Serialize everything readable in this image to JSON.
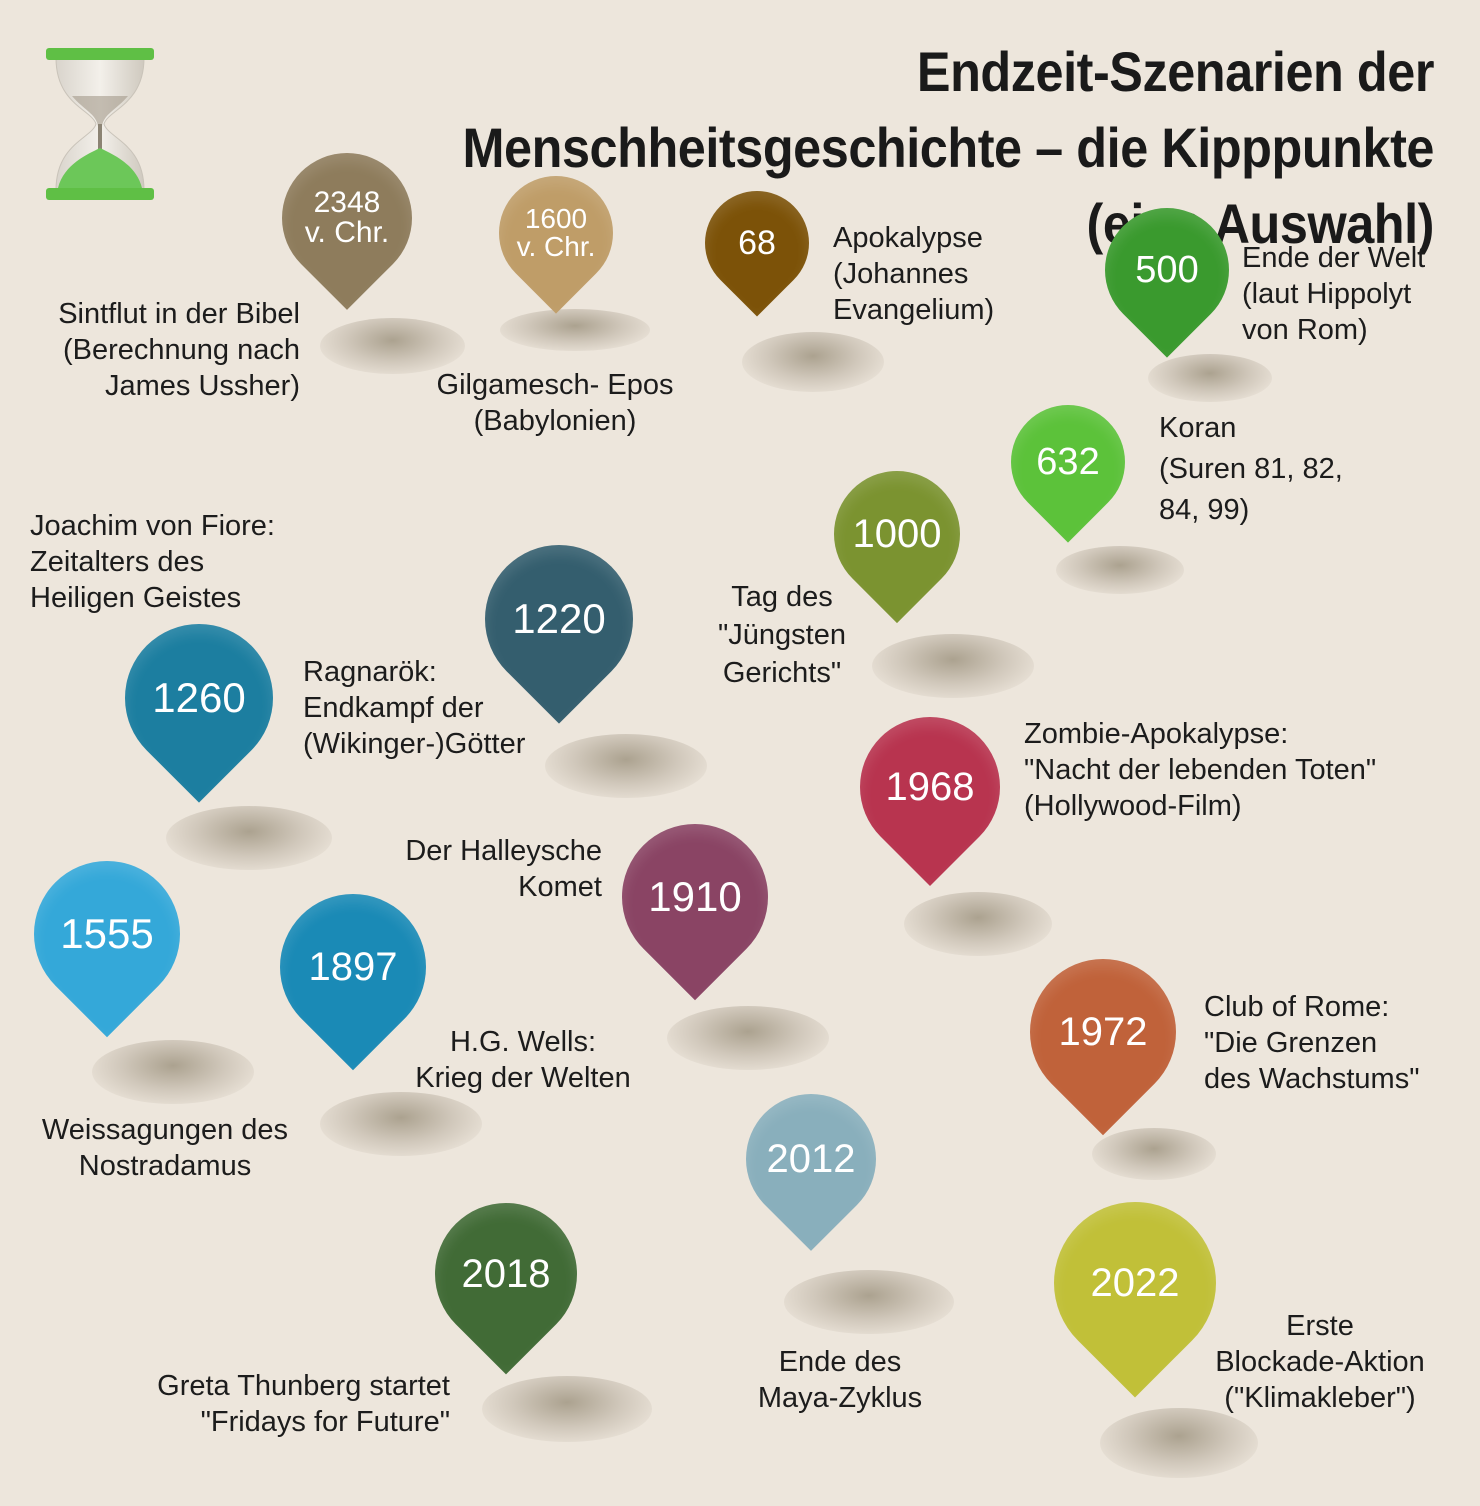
{
  "title": "Endzeit-Szenarien der Menschheitsgeschichte\n– die Kipppunkte (eine Auswahl)",
  "icon": {
    "name": "hourglass-icon",
    "frame_color": "#5fbf45",
    "sand_color": "#6cc759"
  },
  "events": [
    {
      "id": "2348",
      "year": "2348\nv. Chr.",
      "color": "#8e7c5c",
      "description": "Sintflut in der Bibel\n(Berechnung nach\nJames Ussher)"
    },
    {
      "id": "1600",
      "year": "1600\nv. Chr.",
      "color": "#bf9d68",
      "description": "Gilgamesch- Epos\n(Babylonien)"
    },
    {
      "id": "68",
      "year": "68",
      "color": "#7c5208",
      "description": "Apokalypse\n(Johannes\nEvangelium)"
    },
    {
      "id": "500",
      "year": "500",
      "color": "#3a9a2e",
      "description": "Ende der Welt\n(laut Hippolyt\nvon Rom)"
    },
    {
      "id": "632",
      "year": "632",
      "color": "#5cc23a",
      "description": "Koran\n(Suren 81, 82,\n84, 99)"
    },
    {
      "id": "1000",
      "year": "1000",
      "color": "#7b9330",
      "description": "Tag des\n\"Jüngsten\nGerichts\""
    },
    {
      "id": "1220",
      "year": "1220",
      "color": "#345e6e",
      "description": "Ragnarök:\nEndkampf der\n(Wikinger-)Götter"
    },
    {
      "id": "1260",
      "year": "1260",
      "color": "#1c7ea0",
      "description": "Joachim von Fiore:\nZeitalters des\nHeiligen Geistes"
    },
    {
      "id": "1968",
      "year": "1968",
      "color": "#b8344f",
      "description": "Zombie-Apokalypse:\n\"Nacht der lebenden Toten\"\n(Hollywood-Film)"
    },
    {
      "id": "1910",
      "year": "1910",
      "color": "#8a4464",
      "description": "Der Halleysche\nKomet"
    },
    {
      "id": "1555",
      "year": "1555",
      "color": "#34a8d9",
      "description": "Weissagungen des\nNostradamus"
    },
    {
      "id": "1897",
      "year": "1897",
      "color": "#1a8ab6",
      "description": "H.G. Wells:\nKrieg der Welten"
    },
    {
      "id": "1972",
      "year": "1972",
      "color": "#c0623a",
      "description": "Club of Rome:\n\"Die Grenzen\ndes Wachstums\""
    },
    {
      "id": "2012",
      "year": "2012",
      "color": "#89afbc",
      "description": "Ende des\nMaya-Zyklus"
    },
    {
      "id": "2018",
      "year": "2018",
      "color": "#416b36",
      "description": "Greta Thunberg startet\n\"Fridays for Future\""
    },
    {
      "id": "2022",
      "year": "2022",
      "color": "#c1c038",
      "description": "Erste\nBlockade-Aktion\n(\"Klimakleber\")"
    }
  ]
}
